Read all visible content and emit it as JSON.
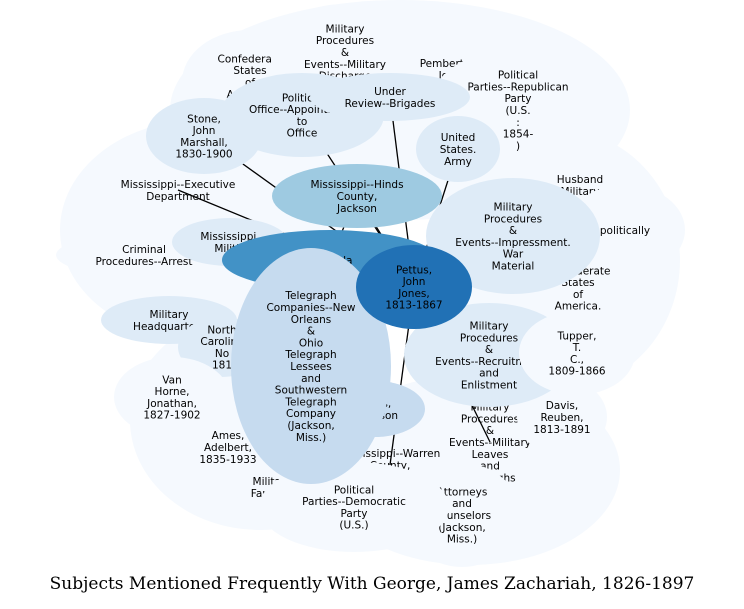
{
  "title": "Subjects Mentioned Frequently With George, James Zachariah, 1826-1897",
  "colors": {
    "level1": "#f5f9fe",
    "level2": "#deebf7",
    "level3": "#c6dbef",
    "level4": "#9ecae1",
    "level5": "#6baed6",
    "level6": "#4292c6",
    "level7": "#2171b5",
    "edge": "#000000"
  },
  "nodes": [
    {
      "id": "confederate-states-army",
      "label": "Confederate\nStates\nof\nAmerica.\nArmy",
      "level": 1
    },
    {
      "id": "military-procedures-military-discharge",
      "label": "Military\nProcedures\n&\nEvents--Military\nDischarge",
      "level": 1
    },
    {
      "id": "pemberton-john",
      "label": "Pemberton,\nJohn\nC.",
      "level": 1
    },
    {
      "id": "political-parties-republican",
      "label": "Political\nParties--Republican\nParty\n(U.S.\n:\n1854-\n)",
      "level": 1
    },
    {
      "id": "husband-military",
      "label": "Husband\nMilitary",
      "level": 1
    },
    {
      "id": "politically",
      "label": "politically",
      "level": 1
    },
    {
      "id": "confederate-states-of-america",
      "label": "Confederate\nStates\nof\nAmerica.",
      "level": 1
    },
    {
      "id": "stone-john-marshall",
      "label": "Stone,\nJohn\nMarshall,\n1830-1900",
      "level": 2
    },
    {
      "id": "political-office-appointment",
      "label": "Political\nOffice--Appointment\nto\nOffice",
      "level": 2
    },
    {
      "id": "under-review-brigades",
      "label": "Under\nReview--Brigades",
      "level": 2
    },
    {
      "id": "united-states-army",
      "label": "United\nStates.\nArmy",
      "level": 2
    },
    {
      "id": "mississippi-executive-department",
      "label": "Mississippi--Executive\nDepartment",
      "level": 1
    },
    {
      "id": "mississippi-hinds-county-jackson",
      "label": "Mississippi--Hinds\nCounty,\nJackson",
      "level": 4
    },
    {
      "id": "military-procedures-impressment",
      "label": "Military\nProcedures\n&\nEvents--Impressment.\nWar\nMaterial",
      "level": 2
    },
    {
      "id": "criminal-procedures-arrest",
      "label": "Criminal\nProcedures--Arrest",
      "level": 1
    },
    {
      "id": "mississippi-militia",
      "label": "Mississippi.\nMilitia",
      "level": 2
    },
    {
      "id": "grenada",
      "label": "Grenada",
      "level": 6
    },
    {
      "id": "pettus-john-jones",
      "label": "Pettus,\nJohn\nJones,\n1813-1867",
      "level": 7
    },
    {
      "id": "military-headquarters",
      "label": "Military\nHeadquarters",
      "level": 2
    },
    {
      "id": "north-carolina",
      "label": "North\nCarolina\nNo\n181",
      "level": 2
    },
    {
      "id": "telegraph-companies",
      "label": "Telegraph\nCompanies--New\nOrleans\n&\nOhio\nTelegraph\nLessees\nand\nSouthwestern\nTelegraph\nCompany\n(Jackson,\nMiss.)",
      "level": 3
    },
    {
      "id": "military-procedures-recruitment",
      "label": "Military\nProcedures\n&\nEvents--Recruitment\nand\nEnlistment",
      "level": 2
    },
    {
      "id": "tupper-t-c",
      "label": "Tupper,\nT.\nC.,\n1809-1866",
      "level": 1
    },
    {
      "id": "van-horne-jonathan",
      "label": "Van\nHorne,\nJonathan,\n1827-1902",
      "level": 1
    },
    {
      "id": "davis-jefferson",
      "label": "Davis,\nJefferson",
      "level": 3
    },
    {
      "id": "military-procedures-leaves",
      "label": "Military\nProcedures\n&\nEvents--Military\nLeaves\nand\nFurloughs",
      "level": 1
    },
    {
      "id": "davis-reuben",
      "label": "Davis,\nReuben,\n1813-1891",
      "level": 1
    },
    {
      "id": "ames-adelbert",
      "label": "Ames,\nAdelbert,\n1835-1933",
      "level": 1
    },
    {
      "id": "mississippi-warren-county",
      "label": "Mississippi--Warren\nCounty,\nVicksburg",
      "level": 1
    },
    {
      "id": "military-families",
      "label": "Military\nFamilies",
      "level": 1
    },
    {
      "id": "political-parties-democratic",
      "label": "Political\nParties--Democratic\nParty\n(U.S.)",
      "level": 1
    },
    {
      "id": "attorneys-counselors",
      "label": "Attorneys\nand\nCounselors\n(Jackson,\nMiss.)",
      "level": 1
    }
  ],
  "edges": [
    [
      "pettus-john-jones",
      "stone-john-marshall"
    ],
    [
      "pettus-john-jones",
      "political-office-appointment"
    ],
    [
      "pettus-john-jones",
      "under-review-brigades"
    ],
    [
      "pettus-john-jones",
      "united-states-army"
    ],
    [
      "pettus-john-jones",
      "mississippi-hinds-county-jackson"
    ],
    [
      "pettus-john-jones",
      "military-procedures-impressment"
    ],
    [
      "pettus-john-jones",
      "military-procedures-recruitment"
    ],
    [
      "pettus-john-jones",
      "telegraph-companies"
    ],
    [
      "pettus-john-jones",
      "van-horne-jonathan"
    ],
    [
      "pettus-john-jones",
      "mississippi-warren-county"
    ],
    [
      "pettus-john-jones",
      "mississippi-executive-department"
    ],
    [
      "pettus-john-jones",
      "military-procedures-leaves"
    ],
    [
      "grenada",
      "mississippi-hinds-county-jackson"
    ]
  ]
}
